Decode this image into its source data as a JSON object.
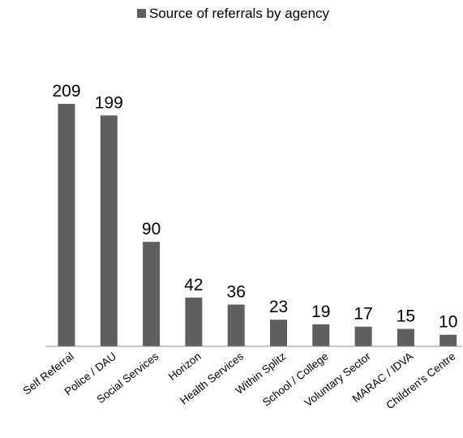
{
  "chart_data": {
    "type": "bar",
    "title": "",
    "xlabel": "",
    "ylabel": "",
    "legend": {
      "placement": "top-center",
      "entries": [
        "Source of referrals by agency"
      ]
    },
    "series": [
      {
        "name": "Source of referrals by agency",
        "values": [
          209,
          199,
          90,
          42,
          36,
          23,
          19,
          17,
          15,
          10
        ]
      }
    ],
    "categories": [
      "Self Referral",
      "Police / DAU",
      "Social Services",
      "Horizon",
      "Health Services",
      "Within Splitz",
      "School / College",
      "Voluntary Sector",
      "MARAC / IDVA",
      "Children's Centre"
    ],
    "ylim": [
      0,
      209
    ],
    "grid": false,
    "data_labels": true,
    "colors": {
      "bar": "#5f5f5f",
      "axis": "#8c8c8c"
    }
  }
}
